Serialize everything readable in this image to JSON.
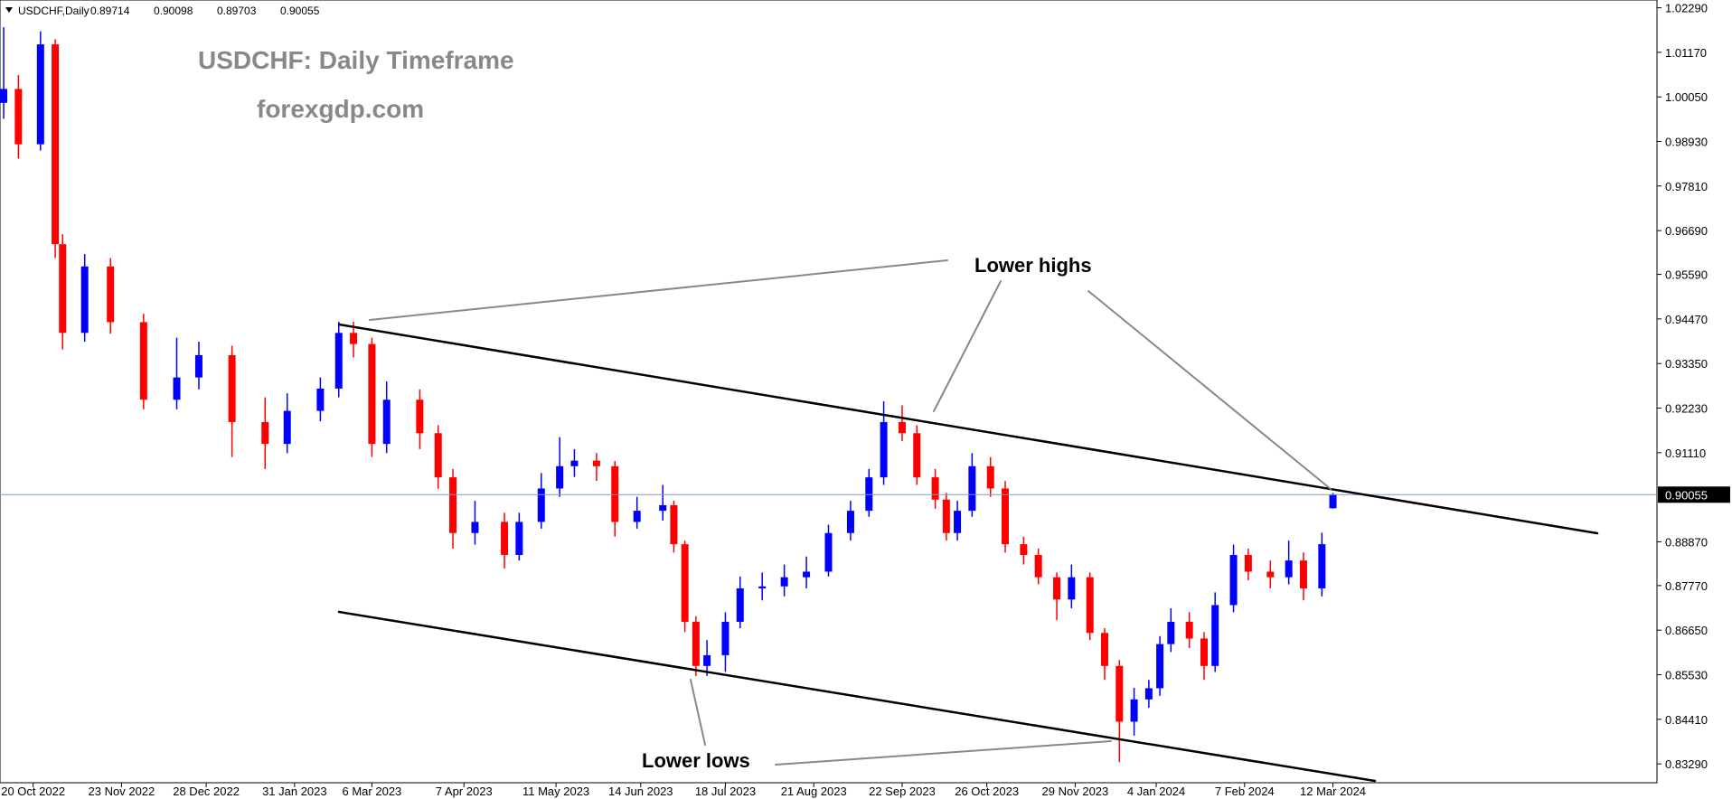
{
  "chart_data": {
    "type": "candlestick",
    "header": "USDCHF,Daily",
    "title": "USDCHF: Daily Timeframe",
    "subtitle": "forexgdp.com",
    "annotations": [
      "Lower highs",
      "Lower lows"
    ],
    "up_color": "#0000ff",
    "down_color": "#ff0000",
    "x": [
      1,
      5,
      11,
      15,
      17,
      23,
      30,
      39,
      48,
      54,
      63,
      72,
      78,
      87,
      92,
      96,
      101,
      105,
      114,
      119,
      123,
      129,
      137,
      141,
      147,
      152,
      156,
      162,
      167,
      173,
      180,
      183,
      186,
      189,
      192,
      197,
      201,
      207,
      213,
      219,
      225,
      231,
      236,
      240,
      245,
      249,
      254,
      257,
      260,
      264,
      269,
      273,
      278,
      282,
      287,
      291,
      296,
      300,
      304,
      308,
      312,
      315,
      318,
      323,
      327,
      330,
      335,
      339,
      345,
      350,
      354,
      359,
      362
    ],
    "open": [
      0.999,
      1.0025,
      0.9886,
      1.0137,
      0.9635,
      0.9412,
      0.9579,
      0.9439,
      0.9244,
      0.93,
      0.9356,
      0.9188,
      0.9133,
      0.9216,
      0.9272,
      0.9412,
      0.9384,
      0.9133,
      0.9244,
      0.916,
      0.9049,
      0.8909,
      0.8937,
      0.8854,
      0.8937,
      0.9021,
      0.9077,
      0.9091,
      0.9077,
      0.8937,
      0.8965,
      0.8979,
      0.8881,
      0.8686,
      0.8575,
      0.8602,
      0.8686,
      0.877,
      0.8775,
      0.8798,
      0.8812,
      0.8909,
      0.8965,
      0.9049,
      0.9188,
      0.916,
      0.9049,
      0.8993,
      0.8909,
      0.8965,
      0.9077,
      0.9021,
      0.8881,
      0.8854,
      0.8798,
      0.8742,
      0.8798,
      0.8658,
      0.8575,
      0.8435,
      0.8491,
      0.8519,
      0.863,
      0.8686,
      0.8644,
      0.8575,
      0.8728,
      0.8854,
      0.8812,
      0.8798,
      0.884,
      0.877,
      0.89714
    ],
    "high": [
      1.018,
      1.006,
      1.017,
      1.015,
      0.966,
      0.961,
      0.96,
      0.946,
      0.94,
      0.939,
      0.938,
      0.925,
      0.926,
      0.93,
      0.944,
      0.944,
      0.94,
      0.929,
      0.927,
      0.918,
      0.907,
      0.899,
      0.896,
      0.896,
      0.906,
      0.915,
      0.912,
      0.911,
      0.909,
      0.9,
      0.903,
      0.899,
      0.889,
      0.87,
      0.864,
      0.871,
      0.88,
      0.881,
      0.883,
      0.885,
      0.893,
      0.899,
      0.907,
      0.924,
      0.923,
      0.918,
      0.907,
      0.901,
      0.899,
      0.911,
      0.91,
      0.904,
      0.89,
      0.887,
      0.881,
      0.883,
      0.881,
      0.867,
      0.859,
      0.852,
      0.854,
      0.865,
      0.872,
      0.871,
      0.866,
      0.876,
      0.888,
      0.887,
      0.884,
      0.889,
      0.886,
      0.891,
      0.90098
    ],
    "low": [
      0.995,
      0.985,
      0.987,
      0.96,
      0.937,
      0.939,
      0.941,
      0.922,
      0.922,
      0.927,
      0.91,
      0.907,
      0.911,
      0.919,
      0.925,
      0.935,
      0.91,
      0.911,
      0.912,
      0.902,
      0.887,
      0.888,
      0.882,
      0.884,
      0.892,
      0.9,
      0.905,
      0.904,
      0.89,
      0.892,
      0.894,
      0.886,
      0.866,
      0.855,
      0.855,
      0.856,
      0.867,
      0.874,
      0.875,
      0.877,
      0.88,
      0.889,
      0.895,
      0.903,
      0.914,
      0.903,
      0.897,
      0.889,
      0.889,
      0.895,
      0.9,
      0.886,
      0.883,
      0.878,
      0.869,
      0.872,
      0.864,
      0.854,
      0.8333,
      0.84,
      0.847,
      0.85,
      0.861,
      0.862,
      0.854,
      0.856,
      0.871,
      0.879,
      0.877,
      0.878,
      0.874,
      0.875,
      0.89703
    ],
    "close": [
      1.0025,
      0.9886,
      1.0137,
      0.9635,
      0.9412,
      0.9579,
      0.9439,
      0.9244,
      0.93,
      0.9356,
      0.9188,
      0.9133,
      0.9216,
      0.9272,
      0.9412,
      0.9384,
      0.9133,
      0.9244,
      0.916,
      0.9049,
      0.8909,
      0.8937,
      0.8854,
      0.8937,
      0.9021,
      0.9077,
      0.9091,
      0.9077,
      0.8937,
      0.8965,
      0.8979,
      0.8881,
      0.8686,
      0.8575,
      0.8602,
      0.8686,
      0.877,
      0.8775,
      0.8798,
      0.8812,
      0.8909,
      0.8965,
      0.9049,
      0.9188,
      0.916,
      0.9049,
      0.8993,
      0.8909,
      0.8965,
      0.9077,
      0.9021,
      0.8881,
      0.8854,
      0.8798,
      0.8742,
      0.8798,
      0.8658,
      0.8575,
      0.8435,
      0.8491,
      0.8519,
      0.863,
      0.8686,
      0.8644,
      0.8575,
      0.8728,
      0.8854,
      0.8812,
      0.8798,
      0.884,
      0.877,
      0.8881,
      0.90055
    ],
    "xlim": [
      0,
      450
    ],
    "ylim": [
      0.82816,
      1.02485
    ],
    "yticks": [
      {
        "value": 1.0229,
        "label": "1.02290"
      },
      {
        "value": 1.0117,
        "label": "1.01170"
      },
      {
        "value": 1.0005,
        "label": "1.00050"
      },
      {
        "value": 0.9893,
        "label": "0.98930"
      },
      {
        "value": 0.9781,
        "label": "0.97810"
      },
      {
        "value": 0.9669,
        "label": "0.96690"
      },
      {
        "value": 0.9559,
        "label": "0.95590"
      },
      {
        "value": 0.9447,
        "label": "0.94470"
      },
      {
        "value": 0.9335,
        "label": "0.93350"
      },
      {
        "value": 0.9223,
        "label": "0.92230"
      },
      {
        "value": 0.9111,
        "label": "0.91110"
      },
      {
        "value": 0.8887,
        "label": "0.88870"
      },
      {
        "value": 0.8777,
        "label": "0.87770"
      },
      {
        "value": 0.8665,
        "label": "0.86650"
      },
      {
        "value": 0.8553,
        "label": "0.85530"
      },
      {
        "value": 0.8441,
        "label": "0.84410"
      },
      {
        "value": 0.8329,
        "label": "0.83290"
      }
    ],
    "xticks": [
      {
        "value": 9,
        "label": "20 Oct 2022"
      },
      {
        "value": 33,
        "label": "23 Nov 2022"
      },
      {
        "value": 56,
        "label": "28 Dec 2022"
      },
      {
        "value": 80,
        "label": "31 Jan 2023"
      },
      {
        "value": 101,
        "label": "6 Mar 2023"
      },
      {
        "value": 126,
        "label": "7 Apr 2023"
      },
      {
        "value": 151,
        "label": "11 May 2023"
      },
      {
        "value": 174,
        "label": "14 Jun 2023"
      },
      {
        "value": 197,
        "label": "18 Jul 2023"
      },
      {
        "value": 221,
        "label": "21 Aug 2023"
      },
      {
        "value": 245,
        "label": "22 Sep 2023"
      },
      {
        "value": 268,
        "label": "26 Oct 2023"
      },
      {
        "value": 292,
        "label": "29 Nov 2023"
      },
      {
        "value": 314,
        "label": "4 Jan 2024"
      },
      {
        "value": 338,
        "label": "7 Feb 2024"
      },
      {
        "value": 362,
        "label": "12 Mar 2024"
      }
    ]
  }
}
